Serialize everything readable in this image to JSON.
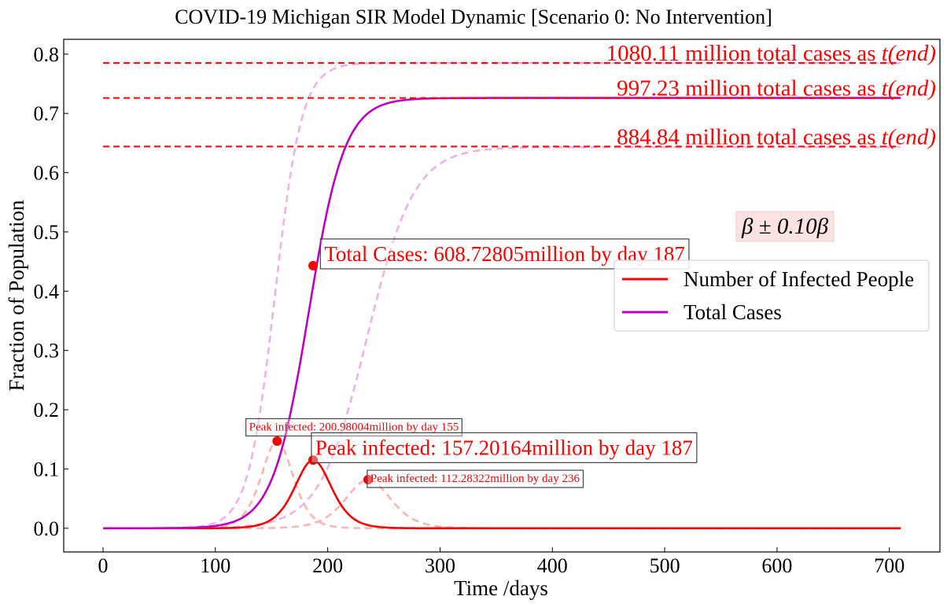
{
  "chart_data": {
    "type": "line",
    "title": "COVID-19 Michigan SIR Model Dynamic [Scenario 0: No Intervention]",
    "xlabel": "Time /days",
    "ylabel": "Fraction of Population",
    "xlim": [
      -35,
      745
    ],
    "ylim": [
      -0.04,
      0.825
    ],
    "x_ticks": [
      0,
      100,
      200,
      300,
      400,
      500,
      600,
      700
    ],
    "y_ticks": [
      0.0,
      0.1,
      0.2,
      0.3,
      0.4,
      0.5,
      0.6,
      0.7,
      0.8
    ],
    "y_tick_labels": [
      "0.0",
      "0.1",
      "0.2",
      "0.3",
      "0.4",
      "0.5",
      "0.6",
      "0.7",
      "0.8"
    ],
    "grid": false,
    "legend_position": "center-right",
    "colors": {
      "infected": "#ff0000",
      "total": "#c000c0",
      "infected_band": "#ffb3b3",
      "total_band": "#f0b0e8",
      "reference_lines": "#ff0000",
      "text": "#ff0000"
    },
    "series": [
      {
        "name": "Number of Infected People",
        "style": "solid",
        "kind": "infected",
        "peak_day": 187,
        "peak": 0.115,
        "width": 22
      },
      {
        "name": "Total Cases",
        "style": "solid",
        "kind": "total",
        "midpoint_day": 183,
        "final": 0.726,
        "width": 16
      },
      {
        "style": "dashed",
        "kind": "infected",
        "peak_day": 155,
        "peak": 0.147,
        "width": 19
      },
      {
        "style": "dashed",
        "kind": "infected",
        "peak_day": 236,
        "peak": 0.082,
        "width": 27
      },
      {
        "style": "dashed",
        "kind": "total",
        "midpoint_day": 153,
        "final": 0.785,
        "width": 12
      },
      {
        "style": "dashed",
        "kind": "total",
        "midpoint_day": 235,
        "final": 0.643,
        "width": 21
      }
    ],
    "reference_lines": [
      {
        "y": 0.785,
        "label": "1080.11 million total cases as ",
        "math": "t(end)"
      },
      {
        "y": 0.726,
        "label": "997.23 million total cases as ",
        "math": "t(end)"
      },
      {
        "y": 0.644,
        "label": "884.84 million total cases as ",
        "math": "t(end)"
      }
    ],
    "markers": [
      {
        "x": 155,
        "y": 0.147
      },
      {
        "x": 187,
        "y": 0.115
      },
      {
        "x": 236,
        "y": 0.082
      },
      {
        "x": 187,
        "y": 0.443
      }
    ],
    "annotations": [
      {
        "text": "Peak infected: 200.98004million by day 155",
        "x": 130,
        "y": 0.165,
        "size": "small"
      },
      {
        "text": "Peak infected: 157.20164million by day 187",
        "x": 189,
        "y": 0.124,
        "size": "large"
      },
      {
        "text": "Peak infected: 112.28322million by day 236",
        "x": 238,
        "y": 0.078,
        "size": "small"
      },
      {
        "text": "Total Cases: 608.72805million by day 187",
        "x": 197,
        "y": 0.451,
        "size": "large"
      }
    ],
    "beta_label": "β ± 0.10β",
    "legend": [
      "Number of Infected People",
      "Total Cases"
    ]
  }
}
